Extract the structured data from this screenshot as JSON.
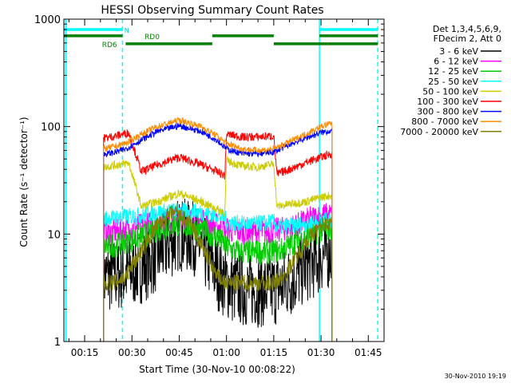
{
  "chart_data": {
    "type": "line",
    "title": "HESSI Observing Summary Count Rates",
    "xlabel": "Start Time (30-Nov-10 00:08:22)",
    "ylabel": "Count Rate (s⁻¹ detector⁻¹)",
    "y_scale": "log",
    "ylim": [
      1,
      1000
    ],
    "xlim_minutes": [
      8.4,
      110
    ],
    "y_ticks": [
      {
        "value": 1,
        "label": "1"
      },
      {
        "value": 10,
        "label": "10"
      },
      {
        "value": 100,
        "label": "100"
      },
      {
        "value": 1000,
        "label": "1000"
      }
    ],
    "x_ticks": [
      {
        "value": 15,
        "label": "00:15"
      },
      {
        "value": 30,
        "label": "00:30"
      },
      {
        "value": 45,
        "label": "00:45"
      },
      {
        "value": 60,
        "label": "01:00"
      },
      {
        "value": 75,
        "label": "01:15"
      },
      {
        "value": 90,
        "label": "01:30"
      },
      {
        "value": 105,
        "label": "01:45"
      }
    ],
    "legend_header": [
      "Det 1,3,4,5,6,9,",
      "FDecim 2, Att 0"
    ],
    "legend_position": "right",
    "timestamp": "30-Nov-2010 19:19",
    "series": [
      {
        "name": "3 - 6 keV",
        "color": "#000000",
        "noise": 0.35,
        "x": [
          21,
          28,
          33,
          37,
          45,
          50,
          54,
          58,
          62,
          66,
          70,
          74,
          77,
          81,
          85,
          88,
          91,
          93.5
        ],
        "y": [
          4,
          4.3,
          5,
          6,
          10,
          9,
          6,
          4,
          3.2,
          3,
          3,
          3,
          3.2,
          3.8,
          5,
          5.6,
          6.5,
          7
        ]
      },
      {
        "name": "6 - 12 keV",
        "color": "#ff00ff",
        "noise": 0.12,
        "x": [
          21,
          28,
          33,
          38,
          45,
          52,
          57,
          60,
          64,
          68,
          72,
          77,
          82,
          87,
          91,
          93.5
        ],
        "y": [
          10,
          11,
          12,
          13,
          14,
          13,
          12,
          11,
          10.5,
          10.5,
          10.5,
          11,
          12,
          14,
          15,
          15
        ]
      },
      {
        "name": "12 - 25 keV",
        "color": "#00cc00",
        "noise": 0.12,
        "x": [
          21,
          28,
          33,
          38,
          45,
          52,
          57,
          60,
          64,
          70,
          77,
          82,
          87,
          91,
          93.5
        ],
        "y": [
          7.5,
          8.5,
          9.5,
          11,
          12.5,
          11,
          9.5,
          7.5,
          6.8,
          6.8,
          7,
          8.5,
          10,
          11,
          11.5
        ]
      },
      {
        "name": "25 - 50 keV",
        "color": "#00ffff",
        "noise": 0.08,
        "x": [
          21,
          28,
          33,
          38,
          45,
          52,
          57,
          59.5,
          60,
          65,
          70,
          75,
          76,
          80,
          85,
          90,
          93.5
        ],
        "y": [
          14,
          14.5,
          15,
          16,
          16.5,
          16,
          15,
          14,
          13,
          12.5,
          12.5,
          13,
          11.5,
          12,
          12.5,
          13,
          13.5
        ]
      },
      {
        "name": "50 - 100 keV",
        "color": "#cccc00",
        "noise": 0.04,
        "x": [
          21,
          25,
          29,
          33,
          38,
          45,
          52,
          57,
          59.5,
          60,
          65,
          70,
          75,
          76,
          80,
          85,
          90,
          93.5
        ],
        "y": [
          42,
          44,
          46,
          18,
          20,
          24,
          20,
          17,
          16,
          48,
          43,
          42,
          45,
          18,
          19,
          20,
          22,
          23
        ]
      },
      {
        "name": "100 - 300 keV",
        "color": "#ff0000",
        "noise": 0.04,
        "x": [
          21,
          25,
          29,
          33,
          38,
          45,
          52,
          57,
          59.5,
          60,
          65,
          70,
          75,
          76,
          80,
          85,
          90,
          93.5
        ],
        "y": [
          78,
          82,
          88,
          38,
          44,
          52,
          44,
          38,
          35,
          85,
          80,
          80,
          82,
          36,
          40,
          46,
          52,
          56
        ]
      },
      {
        "name": "300 - 800 keV",
        "color": "#0000ff",
        "noise": 0.03,
        "x": [
          21,
          25,
          28,
          33,
          38,
          45,
          52,
          57,
          60,
          65,
          70,
          75,
          80,
          85,
          90,
          93.5
        ],
        "y": [
          55,
          58,
          62,
          75,
          90,
          102,
          90,
          75,
          62,
          56,
          56,
          58,
          68,
          78,
          88,
          92
        ]
      },
      {
        "name": "800 - 7000 keV",
        "color": "#ff8c00",
        "noise": 0.03,
        "x": [
          21,
          25,
          28,
          33,
          38,
          45,
          52,
          57,
          60,
          65,
          70,
          75,
          80,
          85,
          90,
          93.5
        ],
        "y": [
          62,
          66,
          70,
          85,
          100,
          115,
          100,
          82,
          70,
          62,
          60,
          62,
          72,
          85,
          100,
          108
        ]
      },
      {
        "name": "7000 - 20000 keV",
        "color": "#808000",
        "noise": 0.08,
        "x": [
          21,
          25,
          28,
          33,
          38,
          43,
          48,
          53,
          57,
          60,
          64,
          70,
          75,
          78,
          82,
          86,
          90,
          93.5
        ],
        "y": [
          3.5,
          3.6,
          4,
          7,
          12,
          16,
          13,
          7,
          4,
          3.5,
          3.5,
          3.5,
          3.5,
          4,
          6,
          9,
          12,
          13
        ]
      }
    ],
    "attenuator_bars": [
      {
        "label": "N",
        "color": "#00ffff",
        "segments": [
          [
            8.4,
            27
          ],
          [
            89.5,
            108
          ]
        ],
        "level": 800
      },
      {
        "label": "RD0",
        "color": "#008000",
        "segments": [
          [
            8.4,
            27
          ],
          [
            55.5,
            75
          ],
          [
            89.5,
            108
          ]
        ],
        "level": 700
      },
      {
        "label": "RD6",
        "color": "#008000",
        "segments": [
          [
            28,
            55.5
          ],
          [
            75,
            108
          ]
        ],
        "level": 590
      }
    ],
    "event_lines": [
      {
        "x": 9,
        "color": "#00ffff",
        "dashed": false
      },
      {
        "x": 27,
        "color": "#00ffff",
        "dashed": true
      },
      {
        "x": 89.5,
        "color": "#00ffff",
        "dashed": false
      },
      {
        "x": 108,
        "color": "#00ffff",
        "dashed": true
      }
    ]
  }
}
